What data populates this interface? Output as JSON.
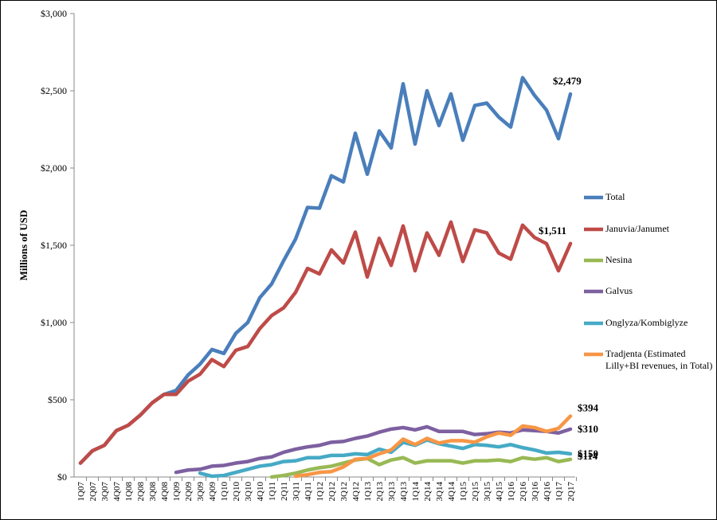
{
  "chart_data": {
    "type": "line",
    "y_label": "Millions of USD",
    "categories": [
      "1Q07",
      "2Q07",
      "3Q07",
      "4Q07",
      "1Q08",
      "2Q08",
      "3Q08",
      "4Q08",
      "1Q09",
      "2Q09",
      "3Q09",
      "4Q09",
      "1Q10",
      "2Q10",
      "3Q10",
      "4Q10",
      "1Q11",
      "2Q11",
      "3Q11",
      "4Q11",
      "1Q12",
      "2Q12",
      "3Q12",
      "4Q12",
      "1Q13",
      "2Q13",
      "3Q13",
      "4Q13",
      "1Q14",
      "2Q14",
      "3Q14",
      "4Q14",
      "1Q15",
      "2Q15",
      "3Q15",
      "4Q15",
      "1Q16",
      "2Q16",
      "3Q16",
      "4Q16",
      "1Q17",
      "2Q17"
    ],
    "ylim": [
      0,
      3000
    ],
    "yticks": [
      {
        "value": 0,
        "label": "$0"
      },
      {
        "value": 500,
        "label": "$500"
      },
      {
        "value": 1000,
        "label": "$1,000"
      },
      {
        "value": 1500,
        "label": "$1,500"
      },
      {
        "value": 2000,
        "label": "$2,000"
      },
      {
        "value": 2500,
        "label": "$2,500"
      },
      {
        "value": 3000,
        "label": "$3,000"
      }
    ],
    "legend": "right",
    "series": [
      {
        "name": "Total",
        "color": "#4a7ebb",
        "values": [
          90,
          170,
          205,
          300,
          335,
          400,
          480,
          535,
          560,
          660,
          730,
          825,
          800,
          930,
          1000,
          1160,
          1250,
          1400,
          1540,
          1745,
          1740,
          1950,
          1910,
          2225,
          1960,
          2240,
          2130,
          2545,
          2155,
          2500,
          2275,
          2480,
          2180,
          2405,
          2420,
          2330,
          2265,
          2585,
          2470,
          2375,
          2190,
          2479
        ],
        "value_labels": [
          null,
          null,
          null,
          null,
          null,
          null,
          null,
          null,
          null,
          null,
          null,
          null,
          null,
          null,
          null,
          null,
          null,
          null,
          null,
          null,
          null,
          null,
          null,
          null,
          null,
          null,
          null,
          null,
          null,
          null,
          null,
          null,
          null,
          null,
          null,
          null,
          null,
          null,
          null,
          null,
          null,
          "$2,479"
        ]
      },
      {
        "name": "Januvia/Janumet",
        "color": "#be4b48",
        "values": [
          90,
          170,
          205,
          300,
          335,
          400,
          480,
          535,
          535,
          620,
          665,
          760,
          715,
          820,
          845,
          960,
          1045,
          1095,
          1195,
          1350,
          1315,
          1470,
          1385,
          1585,
          1295,
          1545,
          1370,
          1625,
          1335,
          1580,
          1435,
          1650,
          1395,
          1600,
          1580,
          1450,
          1410,
          1630,
          1550,
          1510,
          1335,
          1511
        ],
        "value_labels": [
          null,
          null,
          null,
          null,
          null,
          null,
          null,
          null,
          null,
          null,
          null,
          null,
          null,
          null,
          null,
          null,
          null,
          null,
          null,
          null,
          null,
          null,
          null,
          null,
          null,
          null,
          null,
          null,
          null,
          null,
          null,
          null,
          null,
          null,
          null,
          null,
          null,
          null,
          null,
          null,
          null,
          "$1,511"
        ]
      },
      {
        "name": "Nesina",
        "color": "#98b954",
        "values": [
          null,
          null,
          null,
          null,
          null,
          null,
          null,
          null,
          null,
          null,
          null,
          null,
          null,
          null,
          null,
          null,
          0,
          10,
          25,
          45,
          60,
          70,
          90,
          110,
          120,
          80,
          110,
          125,
          90,
          105,
          105,
          105,
          90,
          105,
          105,
          110,
          100,
          125,
          115,
          125,
          100,
          114
        ],
        "value_labels": [
          null,
          null,
          null,
          null,
          null,
          null,
          null,
          null,
          null,
          null,
          null,
          null,
          null,
          null,
          null,
          null,
          null,
          null,
          null,
          null,
          null,
          null,
          null,
          null,
          null,
          null,
          null,
          null,
          null,
          null,
          null,
          null,
          null,
          null,
          null,
          null,
          null,
          null,
          null,
          null,
          null,
          "$114"
        ]
      },
      {
        "name": "Galvus",
        "color": "#7d60a0",
        "values": [
          null,
          null,
          null,
          null,
          null,
          null,
          null,
          null,
          30,
          45,
          50,
          70,
          75,
          90,
          100,
          120,
          130,
          160,
          180,
          195,
          205,
          225,
          230,
          250,
          265,
          290,
          310,
          320,
          305,
          325,
          295,
          295,
          295,
          275,
          280,
          290,
          285,
          305,
          300,
          295,
          285,
          310
        ],
        "value_labels": [
          null,
          null,
          null,
          null,
          null,
          null,
          null,
          null,
          null,
          null,
          null,
          null,
          null,
          null,
          null,
          null,
          null,
          null,
          null,
          null,
          null,
          null,
          null,
          null,
          null,
          null,
          null,
          null,
          null,
          null,
          null,
          null,
          null,
          null,
          null,
          null,
          null,
          null,
          null,
          null,
          null,
          "$310"
        ]
      },
      {
        "name": "Onglyza/Kombiglyze",
        "color": "#46aac5",
        "values": [
          null,
          null,
          null,
          null,
          null,
          null,
          null,
          null,
          null,
          null,
          25,
          5,
          10,
          30,
          50,
          70,
          80,
          100,
          105,
          125,
          125,
          140,
          140,
          150,
          145,
          180,
          160,
          225,
          205,
          240,
          215,
          200,
          185,
          210,
          205,
          195,
          210,
          190,
          175,
          155,
          160,
          150
        ],
        "value_labels": [
          null,
          null,
          null,
          null,
          null,
          null,
          null,
          null,
          null,
          null,
          null,
          null,
          null,
          null,
          null,
          null,
          null,
          null,
          null,
          null,
          null,
          null,
          null,
          null,
          null,
          null,
          null,
          null,
          null,
          null,
          null,
          null,
          null,
          null,
          null,
          null,
          null,
          null,
          null,
          null,
          null,
          "$150"
        ]
      },
      {
        "name": "Tradjenta (Estimated Lilly+BI revenues, in Total)",
        "color": "#f79646",
        "values": [
          null,
          null,
          null,
          null,
          null,
          null,
          null,
          null,
          null,
          null,
          null,
          null,
          null,
          null,
          null,
          null,
          null,
          null,
          5,
          15,
          30,
          35,
          65,
          115,
          120,
          150,
          175,
          245,
          210,
          250,
          220,
          235,
          235,
          225,
          260,
          285,
          270,
          330,
          320,
          295,
          315,
          394
        ],
        "value_labels": [
          null,
          null,
          null,
          null,
          null,
          null,
          null,
          null,
          null,
          null,
          null,
          null,
          null,
          null,
          null,
          null,
          null,
          null,
          null,
          null,
          null,
          null,
          null,
          null,
          null,
          null,
          null,
          null,
          null,
          null,
          null,
          null,
          null,
          null,
          null,
          null,
          null,
          null,
          null,
          null,
          null,
          "$394"
        ]
      }
    ]
  }
}
